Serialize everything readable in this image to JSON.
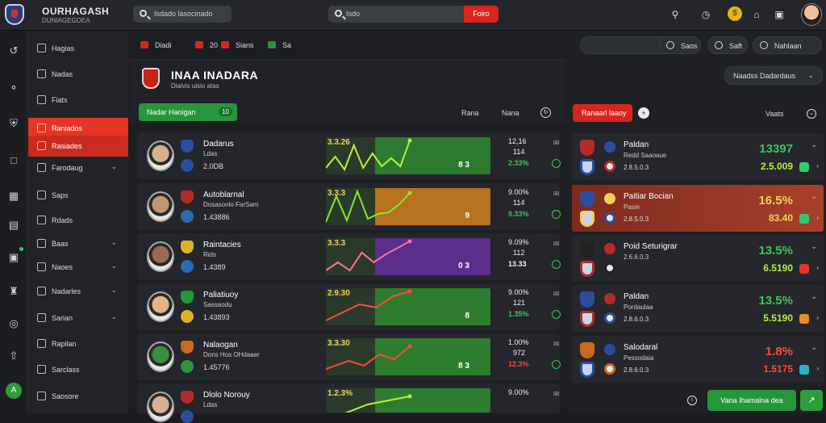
{
  "app": {
    "brand": "OURHAGASH",
    "brand_sub": "DUNIAGEGOEA"
  },
  "topbar": {
    "search1_placeholder": "Isdado lasocinado",
    "search2_placeholder": "Isdo",
    "search_button": "Foiro",
    "icons": [
      "search-icon",
      "clock-icon",
      "coin-icon",
      "home-icon",
      "bookmark-icon"
    ]
  },
  "rail": {
    "icons": [
      "login-icon",
      "globe-icon",
      "shield-icon",
      "building-icon",
      "bag-icon",
      "calendar-icon",
      "gift-icon",
      "trophy-icon",
      "coin-icon",
      "upload-icon"
    ],
    "avatar": "A"
  },
  "sidebar": {
    "items": [
      {
        "label": "Hagias",
        "chevron": false
      },
      {
        "label": "Nadas",
        "chevron": false
      },
      {
        "label": "Fiats",
        "chevron": false
      },
      {
        "label": "Raniados",
        "chevron": false,
        "state": "active"
      },
      {
        "label": "Rasiades",
        "chevron": false,
        "state": "active2"
      },
      {
        "label": "Farodaug",
        "chevron": true
      },
      {
        "label": "Saps",
        "chevron": false
      },
      {
        "label": "Rdads",
        "chevron": false
      },
      {
        "label": "Baas",
        "chevron": true
      },
      {
        "label": "Naoes",
        "chevron": true
      },
      {
        "label": "Nadarles",
        "chevron": true
      },
      {
        "label": "Sarian",
        "chevron": true
      },
      {
        "label": "Rapilan",
        "chevron": false
      },
      {
        "label": "Sarclass",
        "chevron": false
      },
      {
        "label": "Saosore",
        "chevron": false
      }
    ]
  },
  "main": {
    "tabs": [
      {
        "label": "Diadi",
        "color": "#d8261f"
      },
      {
        "label": "20",
        "color": "#d8261f"
      },
      {
        "label": "Sians",
        "color": "#d8261f"
      },
      {
        "label": "Sa",
        "color": "#27963a"
      }
    ],
    "league_title": "INAA INADARA",
    "league_sub": "Dialvis uisio atas",
    "filter_label": "Nadar Haoigan",
    "filter_tag": "10",
    "col_heads": [
      "Rana",
      "Nana"
    ],
    "rows": [
      {
        "name": "Dadarus",
        "team": "Ldas",
        "value": "2.0DB",
        "spark_label": "3.3.26",
        "spark_num": "8 3",
        "stat1": "12,16",
        "stat2": "114",
        "stat3": "2.33%",
        "stat3_color": "#3ec45a",
        "spark_color": "#2c7a30",
        "line_color": "#b6f13a",
        "points": [
          [
            0,
            38
          ],
          [
            10,
            24
          ],
          [
            20,
            40
          ],
          [
            30,
            10
          ],
          [
            40,
            38
          ],
          [
            50,
            20
          ],
          [
            60,
            36
          ],
          [
            70,
            26
          ],
          [
            80,
            36
          ],
          [
            90,
            4
          ]
        ],
        "player_color": "#d8b090",
        "crest1": "#2a4d9f",
        "crest2": "#2a4d9f"
      },
      {
        "name": "Autoblarnal",
        "team": "Dosasonlo FarSam",
        "value": "1.43886",
        "spark_label": "3.3.3",
        "spark_num": "9",
        "stat1": "9.00%",
        "stat2": "114",
        "stat3": "9.33%",
        "stat3_color": "#3ec45a",
        "spark_color": "#b6721e",
        "line_color": "#86e72a",
        "points": [
          [
            0,
            42
          ],
          [
            10,
            10
          ],
          [
            20,
            40
          ],
          [
            30,
            4
          ],
          [
            40,
            38
          ],
          [
            50,
            32
          ],
          [
            60,
            30
          ],
          [
            70,
            20
          ],
          [
            80,
            6
          ]
        ],
        "player_color": "#c4936f",
        "crest1": "#b52a2a",
        "crest2": "#2a6ab5"
      },
      {
        "name": "Raintacies",
        "team": "Rids",
        "value": "1.4389",
        "spark_label": "3.3.3",
        "spark_num": "0 3",
        "stat1": "9.09%",
        "stat2": "112",
        "stat3": "13.33",
        "stat3_color": "#eeeeee",
        "spark_color": "#5a2e8a",
        "line_color": "#ff6fa3",
        "points": [
          [
            0,
            40
          ],
          [
            10,
            30
          ],
          [
            20,
            40
          ],
          [
            30,
            18
          ],
          [
            40,
            30
          ],
          [
            50,
            20
          ],
          [
            60,
            12
          ],
          [
            70,
            4
          ]
        ],
        "player_color": "#9a6b4d",
        "crest1": "#d9b32a",
        "crest2": "#2a6ab5"
      },
      {
        "name": "Paliatiuoy",
        "team": "Sassaodu",
        "value": "1.43893",
        "spark_label": "2.9.30",
        "spark_num": "8",
        "stat1": "9.00%",
        "stat2": "121",
        "stat3": "1.35%",
        "stat3_color": "#3ec45a",
        "spark_color": "#2e7d2f",
        "line_color": "#ff4a3a",
        "points": [
          [
            0,
            40
          ],
          [
            10,
            30
          ],
          [
            20,
            20
          ],
          [
            30,
            24
          ],
          [
            40,
            10
          ],
          [
            50,
            4
          ]
        ],
        "player_color": "#e2b38e",
        "crest1": "#27963a",
        "crest2": "#d9b32a"
      },
      {
        "name": "Nalaogan",
        "team": "Dons Hos OHdaaer",
        "value": "1.45776",
        "spark_label": "3.3.30",
        "spark_num": "8 3",
        "stat1": "1.00%",
        "stat2": "972",
        "stat3": "12.3%",
        "stat3_color": "#ff4a3a",
        "spark_color": "#2e7d2f",
        "line_color": "#ff4a3a",
        "points": [
          [
            0,
            38
          ],
          [
            15,
            28
          ],
          [
            25,
            34
          ],
          [
            35,
            20
          ],
          [
            45,
            26
          ],
          [
            55,
            10
          ]
        ],
        "player_color": "#3b8e3b",
        "crest1": "#c86a1e",
        "crest2": "#27963a"
      },
      {
        "name": "Dlolo Norouy",
        "team": "Ldas",
        "value": "",
        "spark_label": "1.2.3%",
        "spark_num": "",
        "stat1": "9.00%",
        "stat2": "",
        "stat3": "",
        "stat3_color": "#eeeeee",
        "spark_color": "#2e7d2f",
        "line_color": "#b6f13a",
        "points": [
          [
            0,
            40
          ],
          [
            20,
            20
          ],
          [
            40,
            10
          ]
        ],
        "player_color": "#d8b090",
        "crest1": "#b52a2a",
        "crest2": "#2a4d9f"
      }
    ]
  },
  "right": {
    "buttons": [
      "Saos",
      "Saft",
      "Nahlaan"
    ],
    "dropdown": "Naadss Dadardaus",
    "red_pill": "Ranaarl laaoy",
    "col_head": "Vaats",
    "matches": [
      {
        "name": "Paldan",
        "sub": "Redd Saaoaue",
        "val": "2.8.5.0.3",
        "big": "13397",
        "small": "2.5.009",
        "big_color": "#3ec45a",
        "small_color": "#b6f13a",
        "tag_color": "#2ecc71",
        "c1": "#b52a2a",
        "c2": "#2a4d9f",
        "highlight": false
      },
      {
        "name": "Paitiar Bocian",
        "sub": "Pasie",
        "val": "2.8.5.0.3",
        "big": "16.5%",
        "small": "83.40",
        "big_color": "#f0d15c",
        "small_color": "#f0d15c",
        "tag_color": "#2ecc71",
        "c1": "#2a4d9f",
        "c2": "#f0d15c",
        "highlight": true
      },
      {
        "name": "Poid Seturigrar",
        "sub": "2.6.6.0.3",
        "val": "",
        "big": "13.5%",
        "small": "6.5190",
        "big_color": "#3ec45a",
        "small_color": "#b6f13a",
        "tag_color": "#e53524",
        "c1": "#222222",
        "c2": "#b52a2a",
        "highlight": false
      },
      {
        "name": "Paldan",
        "sub": "Pordaulaa",
        "val": "2.8.6.0.3",
        "big": "13.5%",
        "small": "5.5190",
        "big_color": "#3ec45a",
        "small_color": "#b6f13a",
        "tag_color": "#e8901e",
        "c1": "#2a4d9f",
        "c2": "#b52a2a",
        "highlight": false
      },
      {
        "name": "Salodaral",
        "sub": "Pessodaia",
        "val": "2.8.6.0.3",
        "big": "1.8%",
        "small": "1.5175",
        "big_color": "#ff4a3a",
        "small_color": "#ff4a3a",
        "tag_color": "#2ab5c4",
        "c1": "#c86a1e",
        "c2": "#2a4d9f",
        "highlight": false
      }
    ],
    "bet_button": "Vana Ihamalna dea"
  }
}
